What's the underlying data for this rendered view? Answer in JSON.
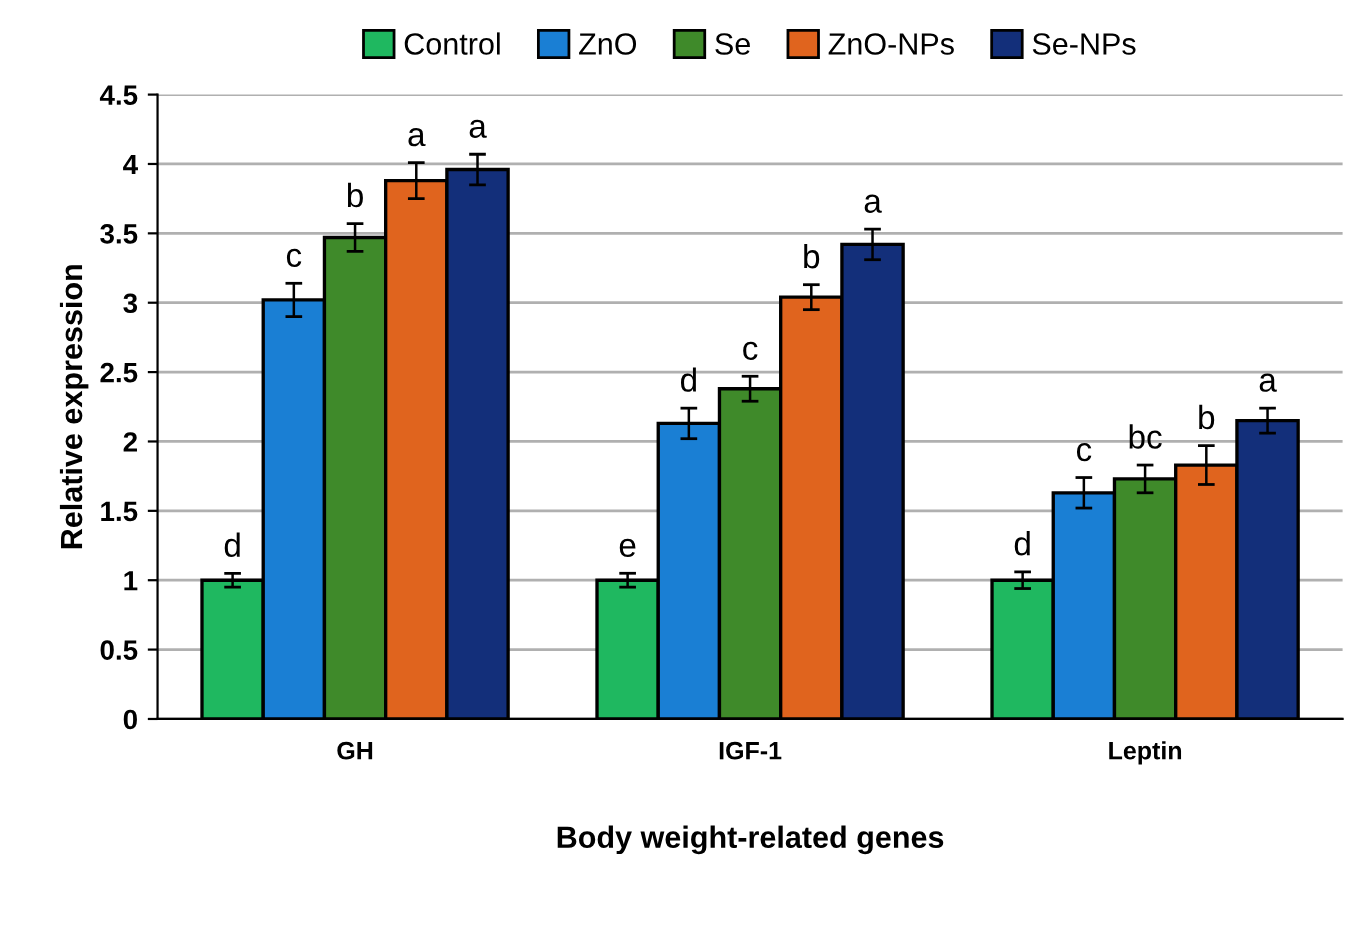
{
  "chart_data": {
    "type": "bar",
    "xlabel": "Body weight-related genes",
    "ylabel": "Relative expression",
    "categories": [
      "GH",
      "IGF-1",
      "Leptin"
    ],
    "series": [
      {
        "name": "Control",
        "color": "#1fb860",
        "values": [
          1,
          1,
          1
        ],
        "errors": [
          0.05,
          0.05,
          0.06
        ],
        "value_labels": [
          "d",
          "e",
          "d"
        ]
      },
      {
        "name": "ZnO",
        "color": "#1a7fd4",
        "values": [
          3.02,
          2.13,
          1.63
        ],
        "errors": [
          0.12,
          0.11,
          0.11
        ],
        "value_labels": [
          "c",
          "d",
          "c"
        ]
      },
      {
        "name": "Se",
        "color": "#3f8a2a",
        "values": [
          3.47,
          2.38,
          1.73
        ],
        "errors": [
          0.1,
          0.09,
          0.1
        ],
        "value_labels": [
          "b",
          "c",
          "bc"
        ]
      },
      {
        "name": "ZnO-NPs",
        "color": "#e0641e",
        "values": [
          3.88,
          3.04,
          1.83
        ],
        "errors": [
          0.13,
          0.09,
          0.14
        ],
        "value_labels": [
          "a",
          "b",
          "b"
        ]
      },
      {
        "name": "Se-NPs",
        "color": "#132f7a",
        "values": [
          3.96,
          3.42,
          2.15
        ],
        "errors": [
          0.11,
          0.11,
          0.09
        ],
        "value_labels": [
          "a",
          "a",
          "a"
        ]
      }
    ],
    "ylim": [
      0,
      4.5
    ],
    "yticks": [
      0,
      0.5,
      1,
      1.5,
      2,
      2.5,
      3,
      3.5,
      4,
      4.5
    ],
    "grid": "y",
    "legend": "top"
  }
}
